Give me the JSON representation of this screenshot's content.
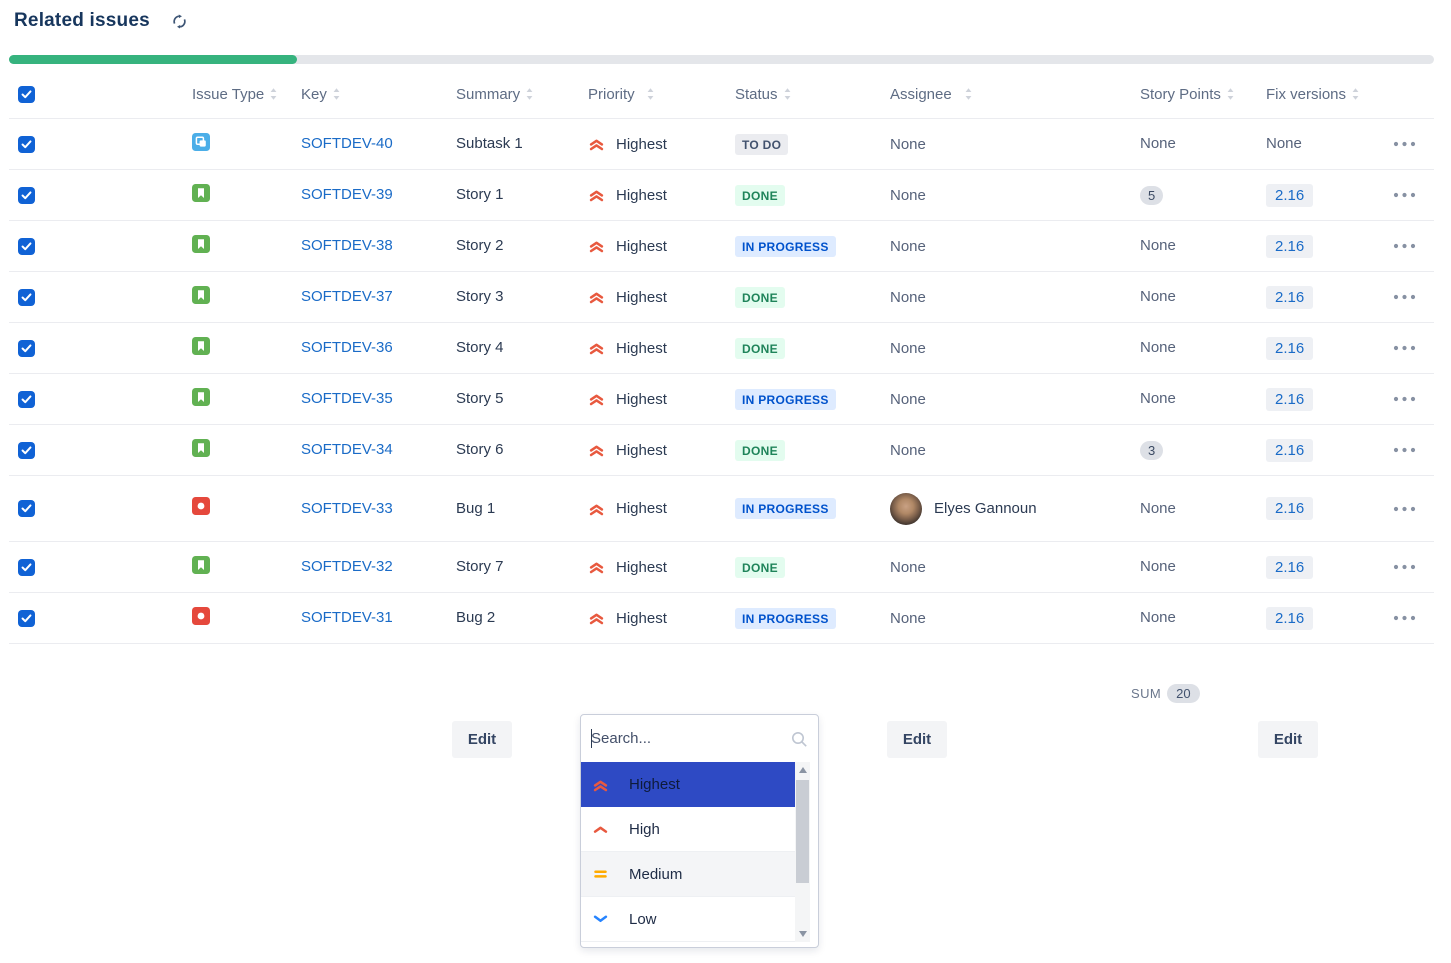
{
  "page": {
    "title": "Related issues"
  },
  "progress": {
    "percent": 20.2
  },
  "colors": {
    "accent_blue": "#1062D5",
    "link_blue": "#1A6BC7",
    "progress_green": "#36B37E",
    "progress_track": "#E4E6EA",
    "priority_red": "#E8593F",
    "priority_yellow": "#FFAB00",
    "priority_low_blue": "#2684FF",
    "status_todo_bg": "#EBECF0",
    "status_todo_fg": "#42526E",
    "status_done_bg": "#E3FCEF",
    "status_done_fg": "#1F845A",
    "status_inprogress_bg": "#DEEBFF",
    "status_inprogress_fg": "#0052CC",
    "selected_option_bg": "#2E4AC4",
    "story_green": "#61B152",
    "bug_red": "#E5483C",
    "subtask_blue": "#4BAEE8"
  },
  "table": {
    "select_all_checked": true,
    "columns": [
      {
        "label": "Issue Type"
      },
      {
        "label": "Key"
      },
      {
        "label": "Summary"
      },
      {
        "label": "Priority"
      },
      {
        "label": "Status"
      },
      {
        "label": "Assignee"
      },
      {
        "label": "Story Points"
      },
      {
        "label": "Fix versions"
      }
    ],
    "rows": [
      {
        "selected": true,
        "type": "subtask",
        "key": "SOFTDEV-40",
        "summary": "Subtask 1",
        "priority": {
          "icon": "highest",
          "label": "Highest"
        },
        "status": {
          "label": "TO DO",
          "kind": "todo"
        },
        "assignee": {
          "label": "None",
          "avatar": false
        },
        "points": {
          "label": "None",
          "badge": false
        },
        "fix": {
          "label": "None",
          "badge": false
        }
      },
      {
        "selected": true,
        "type": "story",
        "key": "SOFTDEV-39",
        "summary": "Story 1",
        "priority": {
          "icon": "highest",
          "label": "Highest"
        },
        "status": {
          "label": "DONE",
          "kind": "done"
        },
        "assignee": {
          "label": "None",
          "avatar": false
        },
        "points": {
          "label": "5",
          "badge": true
        },
        "fix": {
          "label": "2.16",
          "badge": true
        }
      },
      {
        "selected": true,
        "type": "story",
        "key": "SOFTDEV-38",
        "summary": "Story 2",
        "priority": {
          "icon": "highest",
          "label": "Highest"
        },
        "status": {
          "label": "IN PROGRESS",
          "kind": "inprogress"
        },
        "assignee": {
          "label": "None",
          "avatar": false
        },
        "points": {
          "label": "None",
          "badge": false
        },
        "fix": {
          "label": "2.16",
          "badge": true
        }
      },
      {
        "selected": true,
        "type": "story",
        "key": "SOFTDEV-37",
        "summary": "Story 3",
        "priority": {
          "icon": "highest",
          "label": "Highest"
        },
        "status": {
          "label": "DONE",
          "kind": "done"
        },
        "assignee": {
          "label": "None",
          "avatar": false
        },
        "points": {
          "label": "None",
          "badge": false
        },
        "fix": {
          "label": "2.16",
          "badge": true
        }
      },
      {
        "selected": true,
        "type": "story",
        "key": "SOFTDEV-36",
        "summary": "Story 4",
        "priority": {
          "icon": "highest",
          "label": "Highest"
        },
        "status": {
          "label": "DONE",
          "kind": "done"
        },
        "assignee": {
          "label": "None",
          "avatar": false
        },
        "points": {
          "label": "None",
          "badge": false
        },
        "fix": {
          "label": "2.16",
          "badge": true
        }
      },
      {
        "selected": true,
        "type": "story",
        "key": "SOFTDEV-35",
        "summary": "Story 5",
        "priority": {
          "icon": "highest",
          "label": "Highest"
        },
        "status": {
          "label": "IN PROGRESS",
          "kind": "inprogress"
        },
        "assignee": {
          "label": "None",
          "avatar": false
        },
        "points": {
          "label": "None",
          "badge": false
        },
        "fix": {
          "label": "2.16",
          "badge": true
        }
      },
      {
        "selected": true,
        "type": "story",
        "key": "SOFTDEV-34",
        "summary": "Story 6",
        "priority": {
          "icon": "highest",
          "label": "Highest"
        },
        "status": {
          "label": "DONE",
          "kind": "done"
        },
        "assignee": {
          "label": "None",
          "avatar": false
        },
        "points": {
          "label": "3",
          "badge": true
        },
        "fix": {
          "label": "2.16",
          "badge": true
        }
      },
      {
        "selected": true,
        "type": "bug",
        "key": "SOFTDEV-33",
        "summary": "Bug 1",
        "priority": {
          "icon": "highest",
          "label": "Highest"
        },
        "status": {
          "label": "IN PROGRESS",
          "kind": "inprogress"
        },
        "assignee": {
          "label": "Elyes Gannoun",
          "avatar": true
        },
        "points": {
          "label": "None",
          "badge": false
        },
        "fix": {
          "label": "2.16",
          "badge": true
        },
        "tall": true
      },
      {
        "selected": true,
        "type": "story",
        "key": "SOFTDEV-32",
        "summary": "Story 7",
        "priority": {
          "icon": "highest",
          "label": "Highest"
        },
        "status": {
          "label": "DONE",
          "kind": "done"
        },
        "assignee": {
          "label": "None",
          "avatar": false
        },
        "points": {
          "label": "None",
          "badge": false
        },
        "fix": {
          "label": "2.16",
          "badge": true
        }
      },
      {
        "selected": true,
        "type": "bug",
        "key": "SOFTDEV-31",
        "summary": "Bug 2",
        "priority": {
          "icon": "highest",
          "label": "Highest"
        },
        "status": {
          "label": "IN PROGRESS",
          "kind": "inprogress"
        },
        "assignee": {
          "label": "None",
          "avatar": false
        },
        "points": {
          "label": "None",
          "badge": false
        },
        "fix": {
          "label": "2.16",
          "badge": true
        }
      }
    ]
  },
  "footer": {
    "sum_label": "SUM",
    "sum_value": "20",
    "edit_label": "Edit"
  },
  "dropdown": {
    "search_placeholder": "Search...",
    "options": [
      {
        "label": "Highest",
        "icon": "highest",
        "selected": true
      },
      {
        "label": "High",
        "icon": "high",
        "selected": false
      },
      {
        "label": "Medium",
        "icon": "medium",
        "selected": false,
        "shaded": true
      },
      {
        "label": "Low",
        "icon": "low",
        "selected": false
      }
    ]
  }
}
